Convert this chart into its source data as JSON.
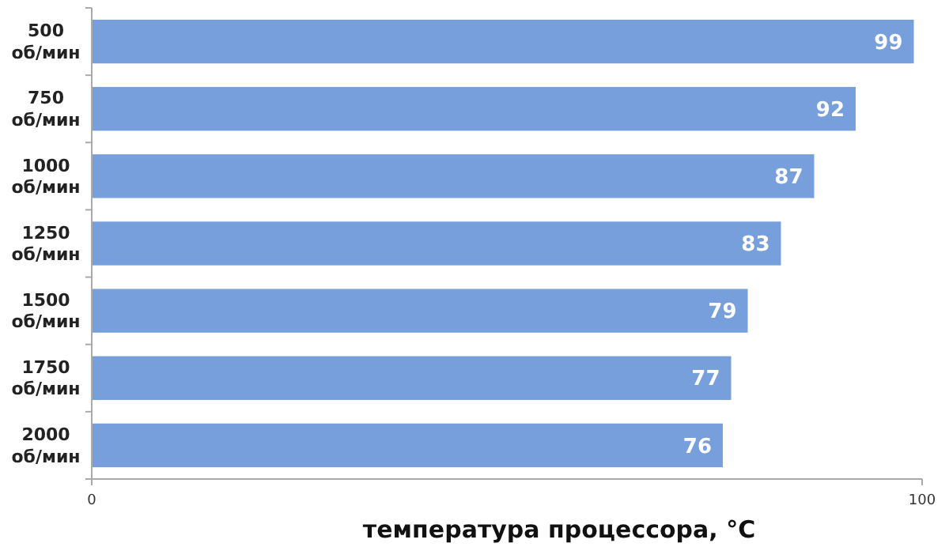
{
  "chart_data": {
    "type": "bar",
    "orientation": "horizontal",
    "xlabel": "температура процессора, °C",
    "categories": [
      "500 об/мин",
      "750 об/мин",
      "1000 об/мин",
      "1250 об/мин",
      "1500 об/мин",
      "1750 об/мин",
      "2000 об/мин"
    ],
    "values": [
      99,
      92,
      87,
      83,
      79,
      77,
      76
    ],
    "color": "#779fdc",
    "xlim": [
      0,
      100
    ],
    "xticks": [
      0,
      100
    ],
    "data_labels": true
  }
}
